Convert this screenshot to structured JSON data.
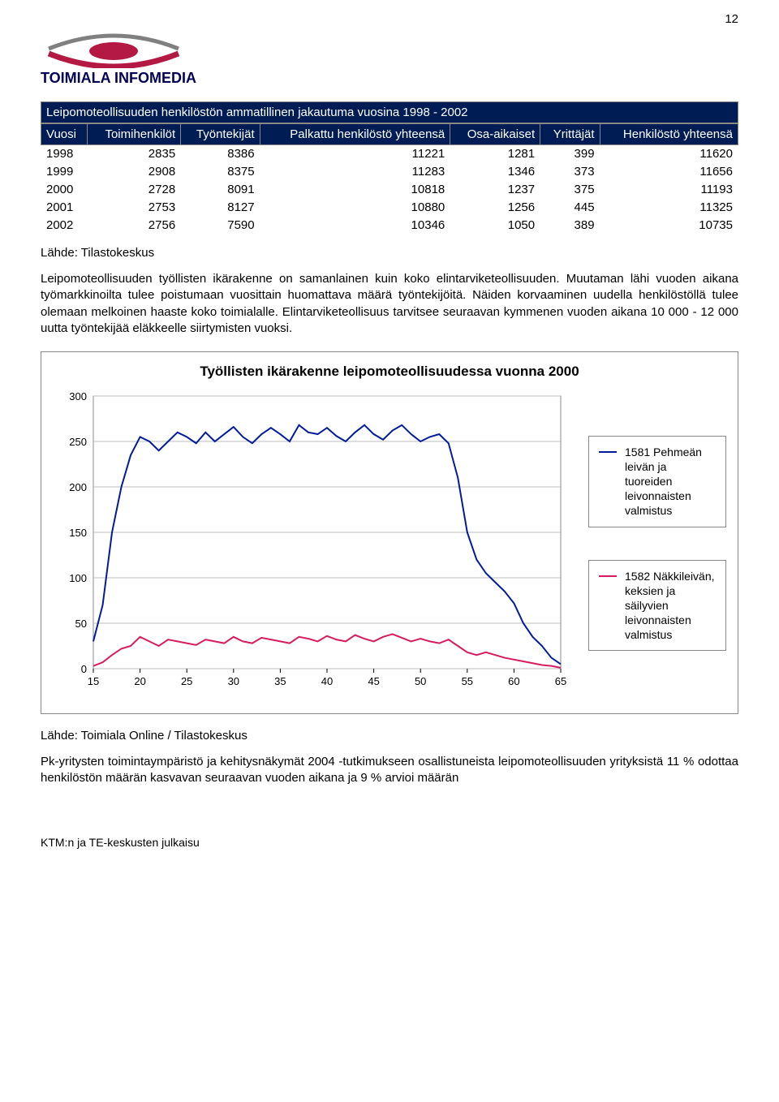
{
  "page_number": "12",
  "logo": {
    "brand": "TOIMIALA INFOMEDIA",
    "swoosh_color_top": "#808080",
    "swoosh_color_bottom": "#b31942"
  },
  "table": {
    "title": "Leipomoteollisuuden henkilöstön ammatillinen jakautuma vuosina 1998 - 2002",
    "columns": [
      "Vuosi",
      "Toimihenkilöt",
      "Työntekijät",
      "Palkattu henkilöstö yhteensä",
      "Osa-aikaiset",
      "Yrittäjät",
      "Henkilöstö yhteensä"
    ],
    "rows": [
      [
        "1998",
        "2835",
        "8386",
        "11221",
        "1281",
        "399",
        "11620"
      ],
      [
        "1999",
        "2908",
        "8375",
        "11283",
        "1346",
        "373",
        "11656"
      ],
      [
        "2000",
        "2728",
        "8091",
        "10818",
        "1237",
        "375",
        "11193"
      ],
      [
        "2001",
        "2753",
        "8127",
        "10880",
        "1256",
        "445",
        "11325"
      ],
      [
        "2002",
        "2756",
        "7590",
        "10346",
        "1050",
        "389",
        "10735"
      ]
    ],
    "header_bg": "#001c54",
    "header_fg": "#ffffff"
  },
  "source1": "Lähde: Tilastokeskus",
  "para1": "Leipomoteollisuuden työllisten ikärakenne on samanlainen kuin koko elintarviketeollisuuden. Muutaman lähi vuoden aikana työmarkkinoilta tulee poistumaan vuosittain huomattava määrä työntekijöitä. Näiden korvaaminen uudella henkilöstöllä tulee olemaan melkoinen haaste koko toimialalle. Elintarviketeollisuus tarvitsee seuraavan kymmenen vuoden aikana 10 000 - 12 000 uutta työntekijää eläkkeelle siirtymisten vuoksi.",
  "chart": {
    "title": "Työllisten ikärakenne leipomoteollisuudessa vuonna 2000",
    "type": "line",
    "xlim": [
      15,
      65
    ],
    "ylim": [
      0,
      300
    ],
    "xticks": [
      15,
      20,
      25,
      30,
      35,
      40,
      45,
      50,
      55,
      60,
      65
    ],
    "yticks": [
      0,
      50,
      100,
      150,
      200,
      250,
      300
    ],
    "grid_color": "#bdbdbd",
    "background_color": "#ffffff",
    "axis_color": "#000000",
    "label_fontsize": 13,
    "line_width": 2,
    "series": [
      {
        "name": "s1",
        "label": "1581 Pehmeän leivän ja tuoreiden leivonnaisten valmistus",
        "color": "#001c9c",
        "points": [
          [
            15,
            30
          ],
          [
            16,
            70
          ],
          [
            17,
            150
          ],
          [
            18,
            200
          ],
          [
            19,
            235
          ],
          [
            20,
            255
          ],
          [
            21,
            250
          ],
          [
            22,
            240
          ],
          [
            23,
            250
          ],
          [
            24,
            260
          ],
          [
            25,
            255
          ],
          [
            26,
            248
          ],
          [
            27,
            260
          ],
          [
            28,
            250
          ],
          [
            29,
            258
          ],
          [
            30,
            266
          ],
          [
            31,
            255
          ],
          [
            32,
            248
          ],
          [
            33,
            258
          ],
          [
            34,
            265
          ],
          [
            35,
            258
          ],
          [
            36,
            250
          ],
          [
            37,
            268
          ],
          [
            38,
            260
          ],
          [
            39,
            258
          ],
          [
            40,
            265
          ],
          [
            41,
            256
          ],
          [
            42,
            250
          ],
          [
            43,
            260
          ],
          [
            44,
            268
          ],
          [
            45,
            258
          ],
          [
            46,
            252
          ],
          [
            47,
            262
          ],
          [
            48,
            268
          ],
          [
            49,
            258
          ],
          [
            50,
            250
          ],
          [
            51,
            255
          ],
          [
            52,
            258
          ],
          [
            53,
            248
          ],
          [
            54,
            210
          ],
          [
            55,
            150
          ],
          [
            56,
            120
          ],
          [
            57,
            105
          ],
          [
            58,
            95
          ],
          [
            59,
            85
          ],
          [
            60,
            72
          ],
          [
            61,
            50
          ],
          [
            62,
            35
          ],
          [
            63,
            25
          ],
          [
            64,
            12
          ],
          [
            65,
            5
          ]
        ]
      },
      {
        "name": "s2",
        "label": "1582 Näkkileivän, keksien ja säilyvien leivonnaisten valmistus",
        "color": "#d81b60",
        "points": [
          [
            15,
            3
          ],
          [
            16,
            7
          ],
          [
            17,
            15
          ],
          [
            18,
            22
          ],
          [
            19,
            25
          ],
          [
            20,
            35
          ],
          [
            21,
            30
          ],
          [
            22,
            25
          ],
          [
            23,
            32
          ],
          [
            24,
            30
          ],
          [
            25,
            28
          ],
          [
            26,
            26
          ],
          [
            27,
            32
          ],
          [
            28,
            30
          ],
          [
            29,
            28
          ],
          [
            30,
            35
          ],
          [
            31,
            30
          ],
          [
            32,
            28
          ],
          [
            33,
            34
          ],
          [
            34,
            32
          ],
          [
            35,
            30
          ],
          [
            36,
            28
          ],
          [
            37,
            35
          ],
          [
            38,
            33
          ],
          [
            39,
            30
          ],
          [
            40,
            36
          ],
          [
            41,
            32
          ],
          [
            42,
            30
          ],
          [
            43,
            37
          ],
          [
            44,
            33
          ],
          [
            45,
            30
          ],
          [
            46,
            35
          ],
          [
            47,
            38
          ],
          [
            48,
            34
          ],
          [
            49,
            30
          ],
          [
            50,
            33
          ],
          [
            51,
            30
          ],
          [
            52,
            28
          ],
          [
            53,
            32
          ],
          [
            54,
            25
          ],
          [
            55,
            18
          ],
          [
            56,
            15
          ],
          [
            57,
            18
          ],
          [
            58,
            15
          ],
          [
            59,
            12
          ],
          [
            60,
            10
          ],
          [
            61,
            8
          ],
          [
            62,
            6
          ],
          [
            63,
            4
          ],
          [
            64,
            3
          ],
          [
            65,
            1
          ]
        ]
      }
    ]
  },
  "source2": "Lähde: Toimiala Online / Tilastokeskus",
  "para2": "Pk-yritysten toimintaympäristö ja kehitysnäkymät 2004 -tutkimukseen osallistuneista leipomoteollisuuden yrityksistä 11 % odottaa henkilöstön määrän kasvavan seuraavan vuoden aikana ja 9 % arvioi määrän",
  "footer": "KTM:n ja TE-keskusten julkaisu"
}
